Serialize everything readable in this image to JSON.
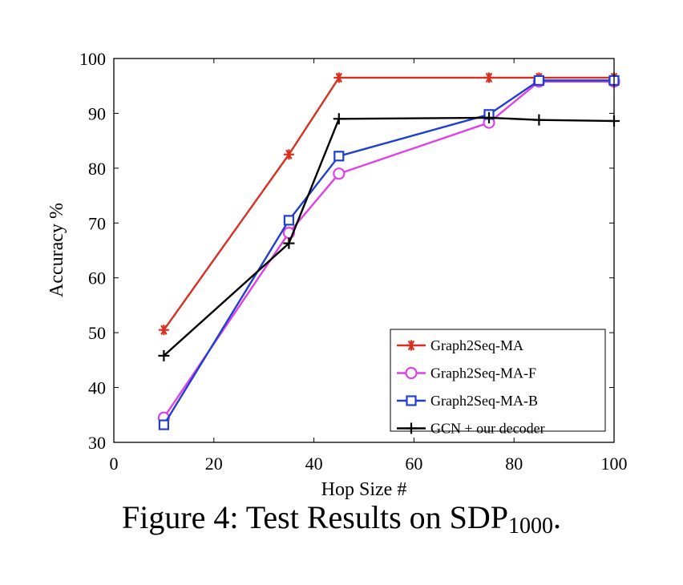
{
  "chart_data": {
    "type": "line",
    "title": "",
    "xlabel": "Hop Size #",
    "ylabel": "Accuracy %",
    "xlim": [
      0,
      100
    ],
    "ylim": [
      30,
      100
    ],
    "xticks": [
      0,
      20,
      40,
      60,
      80,
      100
    ],
    "yticks": [
      30,
      40,
      50,
      60,
      70,
      80,
      90,
      100
    ],
    "legend_position": "bottom-right",
    "series": [
      {
        "name": "Graph2Seq-MA",
        "color": "#d7301f",
        "marker": "asterisk",
        "x": [
          10,
          35,
          45,
          75,
          85,
          100
        ],
        "y": [
          50.5,
          82.5,
          96.5,
          96.5,
          96.5,
          96.5
        ]
      },
      {
        "name": "Graph2Seq-MA-F",
        "color": "#e040e8",
        "marker": "circle",
        "x": [
          10,
          35,
          45,
          75,
          85,
          100
        ],
        "y": [
          34.5,
          68.2,
          79.0,
          88.3,
          95.8,
          95.8
        ]
      },
      {
        "name": "Graph2Seq-MA-B",
        "color": "#1f3fd0",
        "marker": "square",
        "x": [
          10,
          35,
          45,
          75,
          85,
          100
        ],
        "y": [
          33.2,
          70.5,
          82.2,
          89.8,
          96.0,
          96.0
        ]
      },
      {
        "name": "GCN + our decoder",
        "color": "#000000",
        "marker": "plus",
        "x": [
          10,
          35,
          45,
          75,
          85,
          100
        ],
        "y": [
          45.8,
          66.3,
          89.0,
          89.2,
          88.8,
          88.6
        ]
      }
    ]
  },
  "caption": {
    "text": "Figure 4: Test Results on SDP",
    "subscript": "1000",
    "suffix": "."
  }
}
